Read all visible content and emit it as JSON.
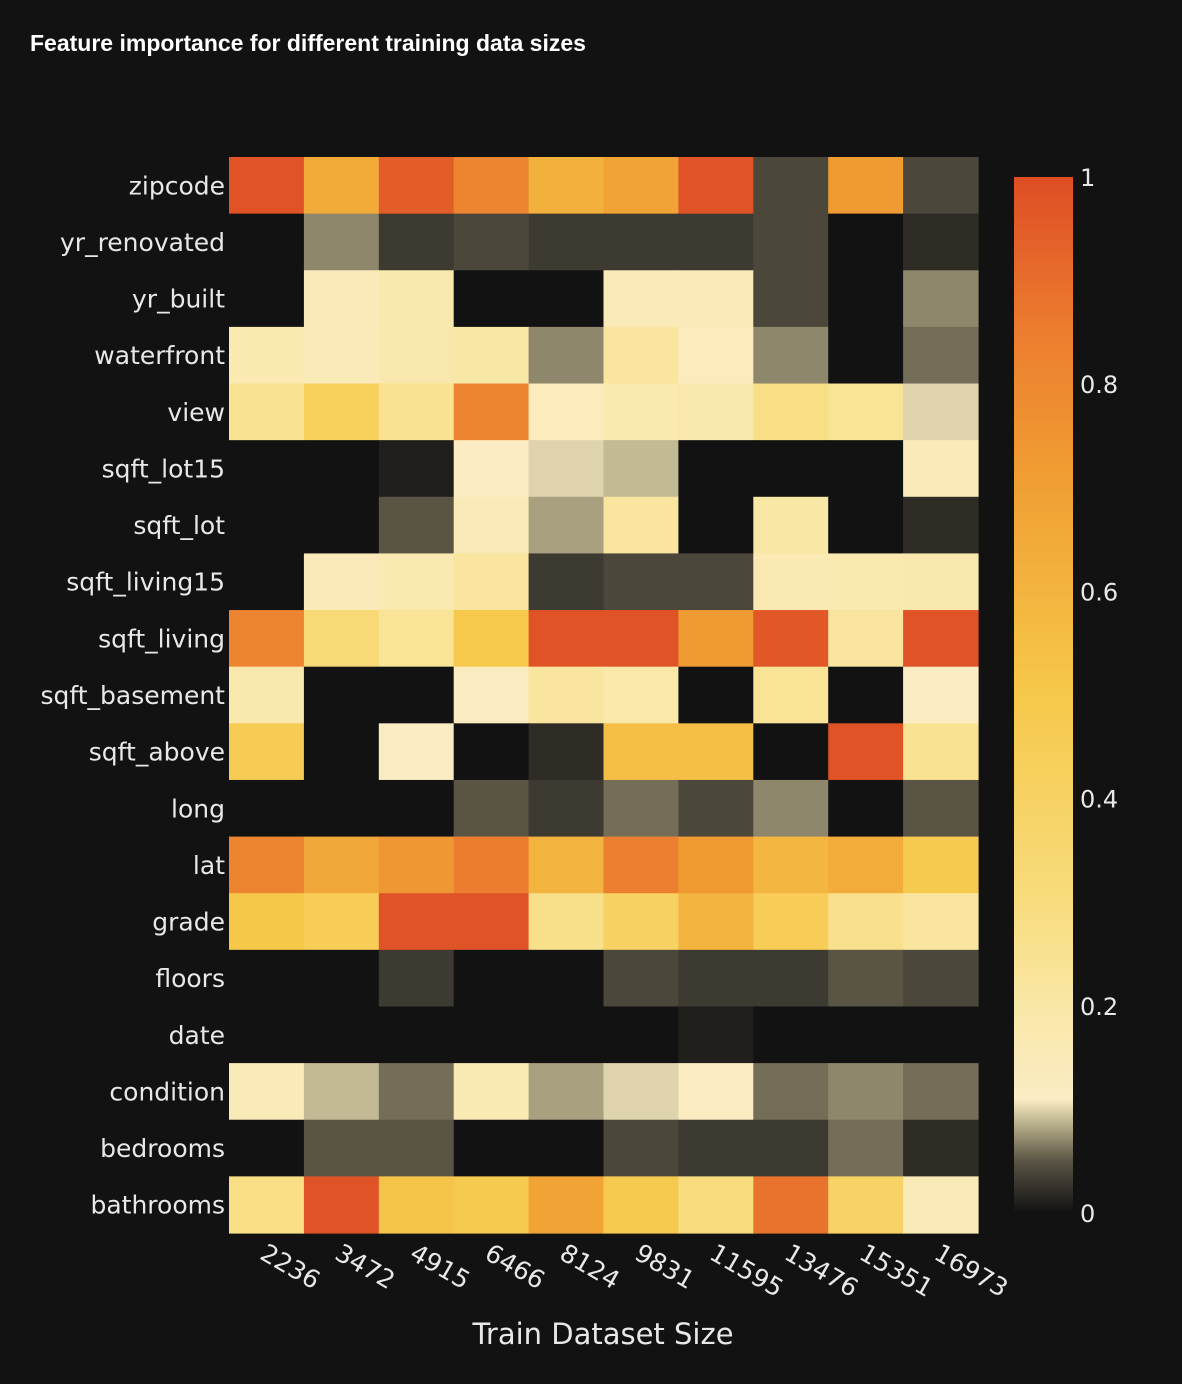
{
  "chart_data": {
    "type": "heatmap",
    "title": "Feature importance for different training data sizes",
    "xlabel": "Train Dataset Size",
    "ylabel": "",
    "x": [
      "2236",
      "3472",
      "4915",
      "6466",
      "8124",
      "9831",
      "11595",
      "13476",
      "15351",
      "16973"
    ],
    "y": [
      "zipcode",
      "yr_renovated",
      "yr_built",
      "waterfront",
      "view",
      "sqft_lot15",
      "sqft_lot",
      "sqft_living15",
      "sqft_living",
      "sqft_basement",
      "sqft_above",
      "long",
      "lat",
      "grade",
      "floors",
      "date",
      "condition",
      "bedrooms",
      "bathrooms"
    ],
    "z": [
      [
        0.98,
        0.65,
        0.95,
        0.82,
        0.62,
        0.68,
        0.98,
        0.04,
        0.72,
        0.04
      ],
      [
        0.0,
        0.07,
        0.03,
        0.04,
        0.03,
        0.03,
        0.03,
        0.04,
        0.0,
        0.02
      ],
      [
        0.0,
        0.14,
        0.18,
        0.0,
        0.0,
        0.14,
        0.14,
        0.04,
        0.0,
        0.07
      ],
      [
        0.17,
        0.15,
        0.18,
        0.2,
        0.07,
        0.22,
        0.13,
        0.07,
        0.0,
        0.06
      ],
      [
        0.25,
        0.42,
        0.25,
        0.82,
        0.13,
        0.17,
        0.18,
        0.28,
        0.24,
        0.1
      ],
      [
        0.0,
        0.0,
        0.01,
        0.11,
        0.1,
        0.09,
        0.0,
        0.0,
        0.0,
        0.15
      ],
      [
        0.0,
        0.0,
        0.05,
        0.15,
        0.08,
        0.22,
        0.0,
        0.2,
        0.0,
        0.02
      ],
      [
        0.0,
        0.14,
        0.17,
        0.22,
        0.03,
        0.04,
        0.04,
        0.16,
        0.17,
        0.18
      ],
      [
        0.82,
        0.33,
        0.24,
        0.49,
        0.98,
        0.98,
        0.72,
        0.97,
        0.22,
        0.98
      ],
      [
        0.18,
        0.0,
        0.0,
        0.12,
        0.22,
        0.19,
        0.0,
        0.24,
        0.0,
        0.11
      ],
      [
        0.46,
        0.0,
        0.11,
        0.0,
        0.02,
        0.55,
        0.55,
        0.0,
        0.98,
        0.25
      ],
      [
        0.0,
        0.0,
        0.0,
        0.05,
        0.03,
        0.06,
        0.04,
        0.07,
        0.0,
        0.05
      ],
      [
        0.82,
        0.66,
        0.74,
        0.85,
        0.6,
        0.84,
        0.72,
        0.59,
        0.64,
        0.48
      ],
      [
        0.5,
        0.45,
        0.98,
        0.98,
        0.27,
        0.41,
        0.6,
        0.45,
        0.26,
        0.22
      ],
      [
        0.0,
        0.0,
        0.03,
        0.0,
        0.0,
        0.04,
        0.03,
        0.03,
        0.05,
        0.04
      ],
      [
        0.0,
        0.0,
        0.0,
        0.0,
        0.0,
        0.0,
        0.01,
        0.0,
        0.0,
        0.0
      ],
      [
        0.15,
        0.09,
        0.06,
        0.16,
        0.08,
        0.1,
        0.12,
        0.06,
        0.07,
        0.06
      ],
      [
        0.0,
        0.05,
        0.05,
        0.0,
        0.0,
        0.04,
        0.03,
        0.03,
        0.06,
        0.02
      ],
      [
        0.28,
        0.98,
        0.52,
        0.48,
        0.68,
        0.48,
        0.3,
        0.88,
        0.4,
        0.15
      ]
    ],
    "zlim": [
      0,
      1
    ],
    "colorbar_ticks": [
      "0",
      "0.2",
      "0.4",
      "0.6",
      "0.8",
      "1"
    ],
    "colorscale": [
      [
        0.0,
        "#121212"
      ],
      [
        0.05,
        "#5a5445"
      ],
      [
        0.08,
        "#a8a07e"
      ],
      [
        0.11,
        "#fbecc4"
      ],
      [
        0.2,
        "#f9e7a6"
      ],
      [
        0.3,
        "#f8dc7d"
      ],
      [
        0.5,
        "#f6c84a"
      ],
      [
        0.7,
        "#f0a033"
      ],
      [
        0.85,
        "#ec7d2f"
      ],
      [
        1.0,
        "#de4d25"
      ]
    ]
  }
}
